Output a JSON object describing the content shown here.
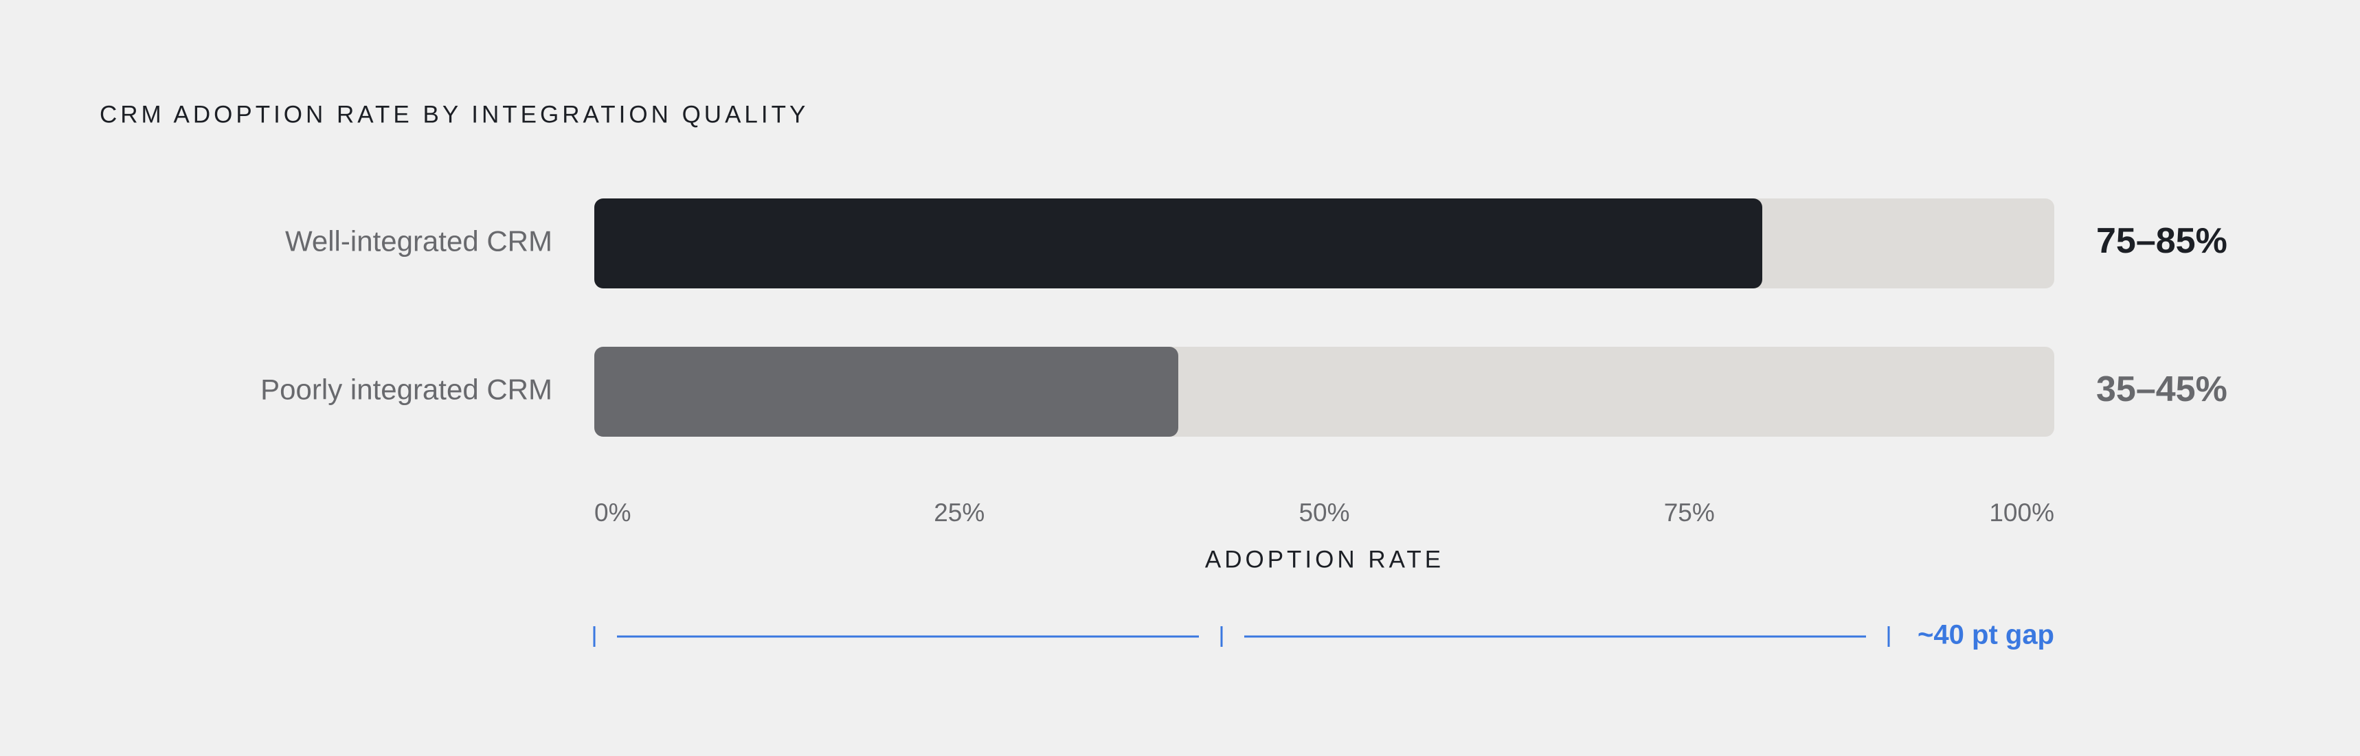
{
  "chart_data": {
    "type": "bar",
    "orientation": "horizontal",
    "title": "CRM ADOPTION RATE BY INTEGRATION QUALITY",
    "categories": [
      "Well-integrated CRM",
      "Poorly integrated CRM"
    ],
    "values": [
      80,
      40
    ],
    "value_labels": [
      "75–85%",
      "35–45%"
    ],
    "colors": [
      "#1c1f25",
      "#68696d"
    ],
    "track_color": "#dedcd9",
    "xlim": [
      0,
      100
    ],
    "xticks": [
      {
        "value": 0,
        "label": "0%"
      },
      {
        "value": 25,
        "label": "25%"
      },
      {
        "value": 50,
        "label": "50%"
      },
      {
        "value": 75,
        "label": "75%"
      },
      {
        "value": 100,
        "label": "100%"
      }
    ],
    "xlabel": "ADOPTION RATE",
    "annotation": "~40 pt gap",
    "annotation_color": "#3a78e0"
  }
}
